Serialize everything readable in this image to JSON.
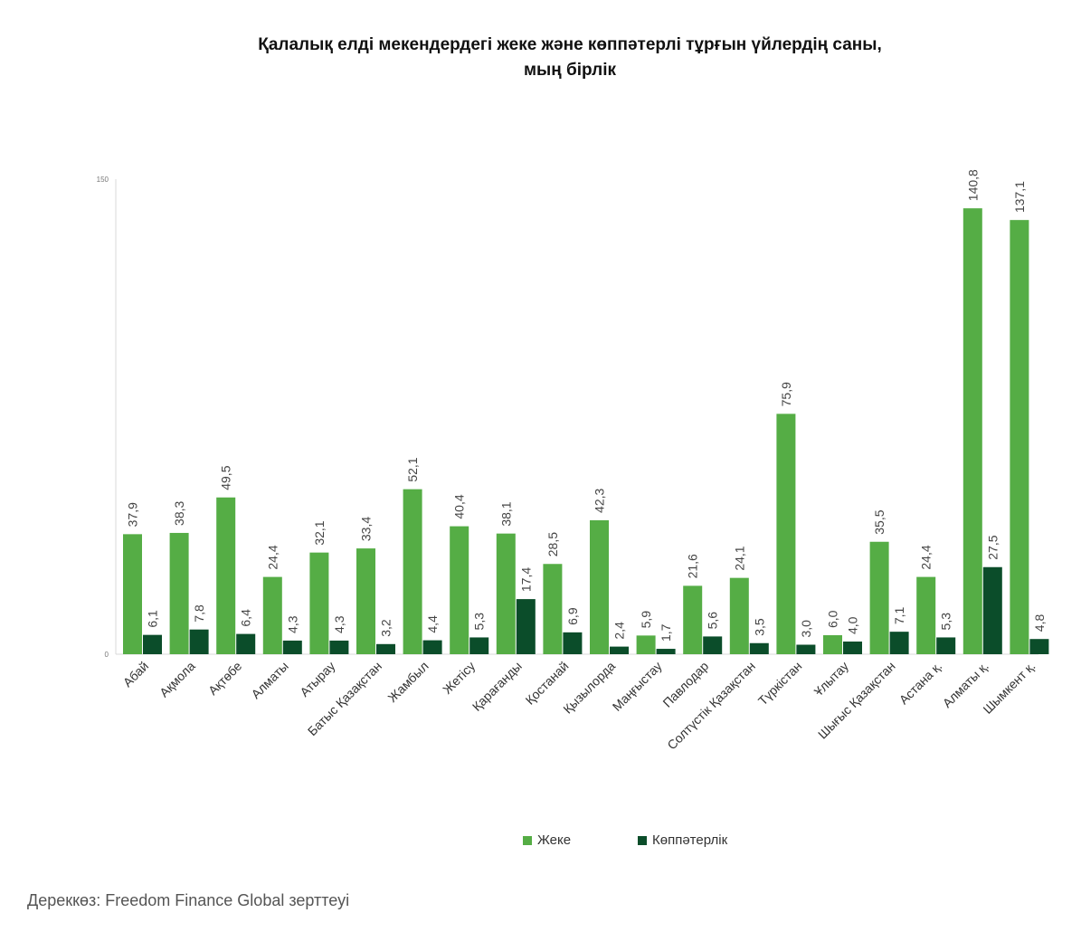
{
  "title_line1": "Қалалық елді мекендердегі жеке және көппәтерлі тұрғын үйлердің саны,",
  "title_line2": "мың бірлік",
  "source": "Дереккөз: Freedom Finance Global зерттеуі",
  "colors": {
    "private": "#55ad45",
    "apartment": "#0b4d2a"
  },
  "chart_data": {
    "type": "bar",
    "categories": [
      "Абай",
      "Ақмола",
      "Ақтөбе",
      "Алматы",
      "Атырау",
      "Батыс Қазақстан",
      "Жамбыл",
      "Жетісу",
      "Қарағанды",
      "Қостанай",
      "Қызылорда",
      "Маңғыстау",
      "Павлодар",
      "Солтүстік Қазақстан",
      "Түркістан",
      "Ұлытау",
      "Шығыс Қазақстан",
      "Астана қ.",
      "Алматы қ.",
      "Шымкент қ."
    ],
    "series": [
      {
        "name": "Жеке",
        "values": [
          37.9,
          38.3,
          49.5,
          24.4,
          32.1,
          33.4,
          52.1,
          40.4,
          38.1,
          28.5,
          42.3,
          5.9,
          21.6,
          24.1,
          75.9,
          6.0,
          35.5,
          24.4,
          140.8,
          137.1
        ],
        "labels": [
          "37,9",
          "38,3",
          "49,5",
          "24,4",
          "32,1",
          "33,4",
          "52,1",
          "40,4",
          "38,1",
          "28,5",
          "42,3",
          "5,9",
          "21,6",
          "24,1",
          "75,9",
          "6,0",
          "35,5",
          "24,4",
          "140,8",
          "137,1"
        ]
      },
      {
        "name": "Көппәтерлік",
        "values": [
          6.1,
          7.8,
          6.4,
          4.3,
          4.3,
          3.2,
          4.4,
          5.3,
          17.4,
          6.9,
          2.4,
          1.7,
          5.6,
          3.5,
          3.0,
          4.0,
          7.1,
          5.3,
          27.5,
          4.8
        ],
        "labels": [
          "6,1",
          "7,8",
          "6,4",
          "4,3",
          "4,3",
          "3,2",
          "4,4",
          "5,3",
          "17,4",
          "6,9",
          "2,4",
          "1,7",
          "5,6",
          "3,5",
          "3,0",
          "4,0",
          "7,1",
          "5,3",
          "27,5",
          "4,8"
        ]
      }
    ],
    "ylim": [
      0,
      150
    ],
    "yticks": [
      "0",
      "150"
    ],
    "legend_position": "bottom",
    "grid": false
  }
}
